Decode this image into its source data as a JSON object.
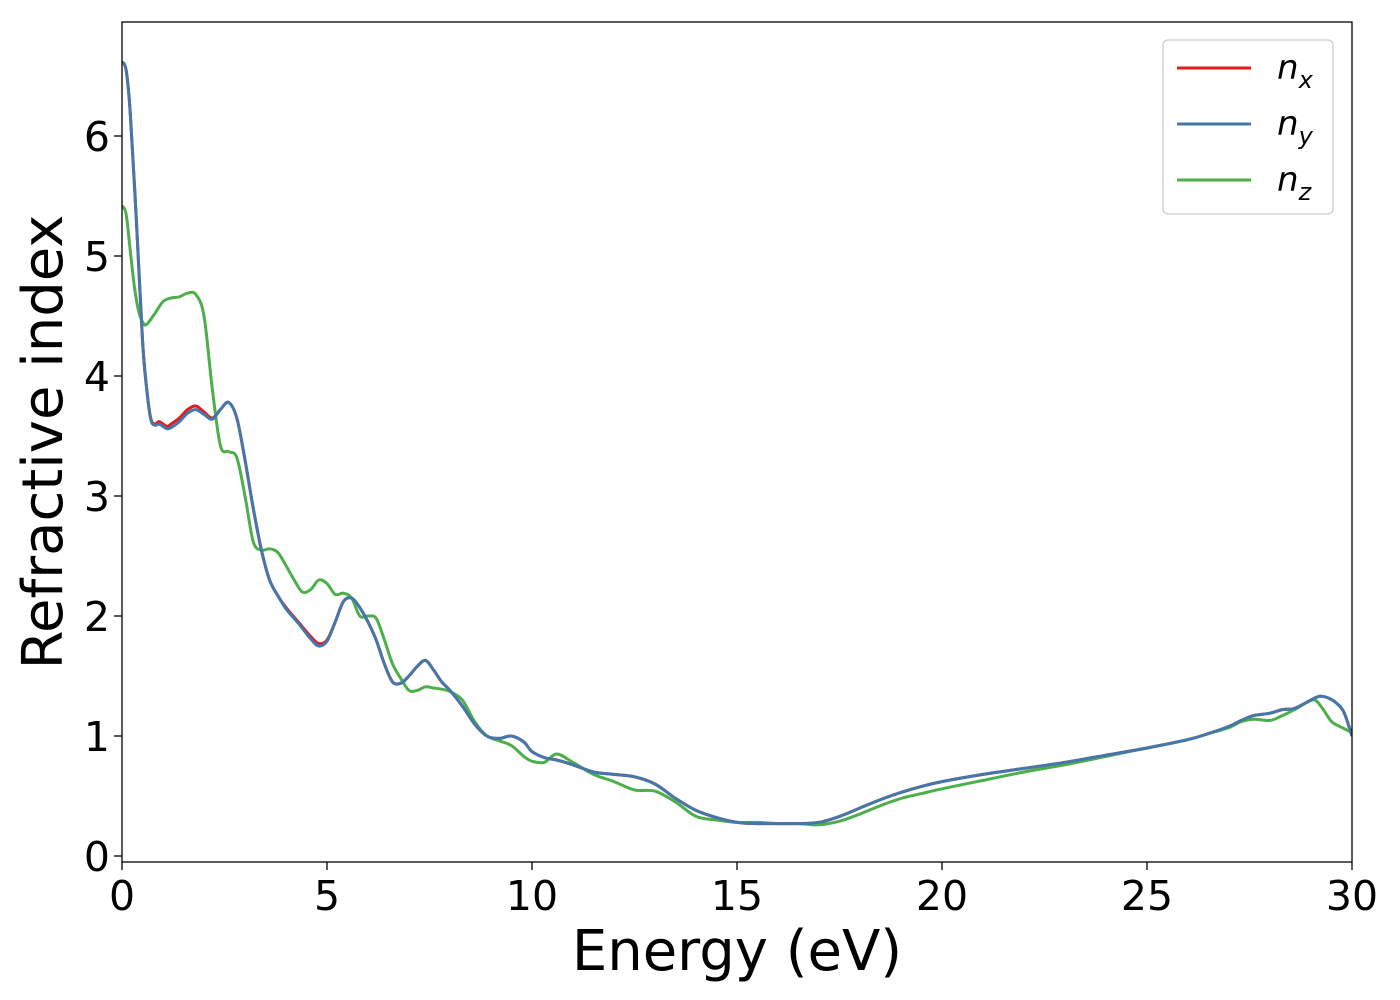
{
  "chart_data": {
    "type": "line",
    "xlabel": "Energy (eV)",
    "ylabel": "Refractive index",
    "xlim": [
      0,
      30
    ],
    "ylim": [
      -0.05,
      6.95
    ],
    "xticks": [
      0,
      5,
      10,
      15,
      20,
      25,
      30
    ],
    "yticks": [
      0,
      1,
      2,
      3,
      4,
      5,
      6
    ],
    "grid": false,
    "legend_position": "top-right",
    "series": [
      {
        "name": "n",
        "subscript": "x",
        "color": "#e41a1c",
        "x": [
          0,
          0.1,
          0.2,
          0.35,
          0.5,
          0.6,
          0.7,
          0.8,
          0.9,
          1.0,
          1.1,
          1.2,
          1.4,
          1.6,
          1.8,
          2.0,
          2.2,
          2.4,
          2.6,
          2.8,
          3.0,
          3.2,
          3.4,
          3.6,
          3.8,
          4.0,
          4.3,
          4.6,
          4.8,
          5.0,
          5.2,
          5.4,
          5.6,
          5.8,
          6.0,
          6.2,
          6.4,
          6.6,
          6.8,
          7.0,
          7.2,
          7.4,
          7.6,
          7.8,
          8.0,
          8.3,
          8.6,
          8.9,
          9.2,
          9.5,
          9.8,
          10.0,
          10.3,
          10.6,
          11.0,
          11.5,
          12.0,
          12.5,
          13.0,
          13.5,
          14.0,
          14.5,
          15.0,
          15.5,
          16.0,
          16.5,
          17.0,
          17.5,
          18.0,
          18.5,
          19.0,
          19.5,
          20.0,
          21.0,
          22.0,
          23.0,
          24.0,
          25.0,
          26.0,
          26.5,
          27.0,
          27.3,
          27.6,
          28.0,
          28.3,
          28.6,
          29.0,
          29.2,
          29.4,
          29.6,
          29.8,
          30.0
        ],
        "values": [
          6.62,
          6.55,
          6.2,
          5.3,
          4.3,
          3.9,
          3.65,
          3.6,
          3.62,
          3.6,
          3.58,
          3.6,
          3.65,
          3.72,
          3.75,
          3.7,
          3.65,
          3.72,
          3.78,
          3.65,
          3.3,
          2.9,
          2.55,
          2.3,
          2.17,
          2.07,
          1.95,
          1.83,
          1.77,
          1.8,
          1.95,
          2.12,
          2.15,
          2.07,
          1.95,
          1.8,
          1.6,
          1.45,
          1.44,
          1.5,
          1.58,
          1.63,
          1.55,
          1.45,
          1.38,
          1.25,
          1.1,
          1.0,
          0.98,
          1.0,
          0.95,
          0.87,
          0.82,
          0.8,
          0.76,
          0.7,
          0.68,
          0.66,
          0.6,
          0.48,
          0.38,
          0.32,
          0.28,
          0.27,
          0.27,
          0.27,
          0.28,
          0.33,
          0.4,
          0.47,
          0.53,
          0.58,
          0.62,
          0.68,
          0.73,
          0.78,
          0.84,
          0.9,
          0.97,
          1.02,
          1.08,
          1.13,
          1.17,
          1.19,
          1.22,
          1.23,
          1.3,
          1.33,
          1.32,
          1.28,
          1.2,
          1.0
        ]
      },
      {
        "name": "n",
        "subscript": "y",
        "color": "#4477aa",
        "x": [
          0,
          0.1,
          0.2,
          0.35,
          0.5,
          0.6,
          0.7,
          0.8,
          0.9,
          1.0,
          1.1,
          1.2,
          1.4,
          1.6,
          1.8,
          2.0,
          2.2,
          2.4,
          2.6,
          2.8,
          3.0,
          3.2,
          3.4,
          3.6,
          3.8,
          4.0,
          4.3,
          4.6,
          4.8,
          5.0,
          5.2,
          5.4,
          5.6,
          5.8,
          6.0,
          6.2,
          6.4,
          6.6,
          6.8,
          7.0,
          7.2,
          7.4,
          7.6,
          7.8,
          8.0,
          8.3,
          8.6,
          8.9,
          9.2,
          9.5,
          9.8,
          10.0,
          10.3,
          10.6,
          11.0,
          11.5,
          12.0,
          12.5,
          13.0,
          13.5,
          14.0,
          14.5,
          15.0,
          15.5,
          16.0,
          16.5,
          17.0,
          17.5,
          18.0,
          18.5,
          19.0,
          19.5,
          20.0,
          21.0,
          22.0,
          23.0,
          24.0,
          25.0,
          26.0,
          26.5,
          27.0,
          27.3,
          27.6,
          28.0,
          28.3,
          28.6,
          29.0,
          29.2,
          29.4,
          29.6,
          29.8,
          30.0
        ],
        "values": [
          6.62,
          6.55,
          6.2,
          5.3,
          4.3,
          3.9,
          3.64,
          3.59,
          3.6,
          3.58,
          3.56,
          3.57,
          3.62,
          3.69,
          3.72,
          3.68,
          3.64,
          3.72,
          3.78,
          3.65,
          3.3,
          2.9,
          2.55,
          2.3,
          2.17,
          2.06,
          1.94,
          1.81,
          1.75,
          1.79,
          1.95,
          2.12,
          2.15,
          2.07,
          1.95,
          1.8,
          1.6,
          1.45,
          1.44,
          1.5,
          1.58,
          1.63,
          1.55,
          1.45,
          1.38,
          1.25,
          1.1,
          1.0,
          0.98,
          1.0,
          0.95,
          0.87,
          0.82,
          0.8,
          0.76,
          0.7,
          0.68,
          0.66,
          0.6,
          0.48,
          0.38,
          0.32,
          0.28,
          0.27,
          0.27,
          0.27,
          0.28,
          0.33,
          0.4,
          0.47,
          0.53,
          0.58,
          0.62,
          0.68,
          0.73,
          0.78,
          0.84,
          0.9,
          0.97,
          1.02,
          1.08,
          1.13,
          1.17,
          1.19,
          1.22,
          1.23,
          1.3,
          1.33,
          1.32,
          1.28,
          1.2,
          1.0
        ]
      },
      {
        "name": "n",
        "subscript": "z",
        "color": "#4daf4a",
        "x": [
          0,
          0.1,
          0.2,
          0.3,
          0.4,
          0.5,
          0.6,
          0.8,
          1.0,
          1.2,
          1.4,
          1.6,
          1.8,
          2.0,
          2.2,
          2.4,
          2.6,
          2.8,
          3.0,
          3.2,
          3.4,
          3.6,
          3.8,
          4.0,
          4.2,
          4.4,
          4.6,
          4.8,
          5.0,
          5.2,
          5.4,
          5.6,
          5.8,
          6.0,
          6.2,
          6.4,
          6.6,
          6.8,
          7.0,
          7.2,
          7.4,
          7.6,
          7.8,
          8.0,
          8.3,
          8.6,
          8.9,
          9.2,
          9.5,
          9.8,
          10.0,
          10.3,
          10.6,
          11.0,
          11.5,
          12.0,
          12.5,
          13.0,
          13.5,
          14.0,
          14.5,
          15.0,
          15.5,
          16.0,
          16.5,
          17.0,
          17.5,
          18.0,
          18.5,
          19.0,
          19.5,
          20.0,
          21.0,
          22.0,
          23.0,
          24.0,
          25.0,
          26.0,
          26.5,
          27.0,
          27.3,
          27.6,
          28.0,
          28.3,
          28.6,
          28.9,
          29.1,
          29.3,
          29.5,
          29.7,
          30.0
        ],
        "values": [
          5.42,
          5.35,
          5.05,
          4.75,
          4.55,
          4.45,
          4.43,
          4.52,
          4.62,
          4.65,
          4.66,
          4.69,
          4.68,
          4.5,
          3.9,
          3.42,
          3.37,
          3.32,
          3.0,
          2.62,
          2.55,
          2.56,
          2.53,
          2.42,
          2.3,
          2.2,
          2.22,
          2.3,
          2.27,
          2.18,
          2.19,
          2.15,
          2.0,
          2.0,
          1.98,
          1.8,
          1.6,
          1.48,
          1.38,
          1.38,
          1.41,
          1.4,
          1.39,
          1.37,
          1.3,
          1.12,
          1.0,
          0.96,
          0.92,
          0.83,
          0.79,
          0.78,
          0.85,
          0.78,
          0.68,
          0.62,
          0.55,
          0.54,
          0.45,
          0.33,
          0.3,
          0.28,
          0.28,
          0.27,
          0.27,
          0.26,
          0.29,
          0.35,
          0.42,
          0.48,
          0.52,
          0.56,
          0.63,
          0.7,
          0.76,
          0.83,
          0.9,
          0.97,
          1.02,
          1.07,
          1.12,
          1.14,
          1.13,
          1.17,
          1.22,
          1.28,
          1.3,
          1.22,
          1.12,
          1.08,
          1.03
        ]
      }
    ]
  }
}
